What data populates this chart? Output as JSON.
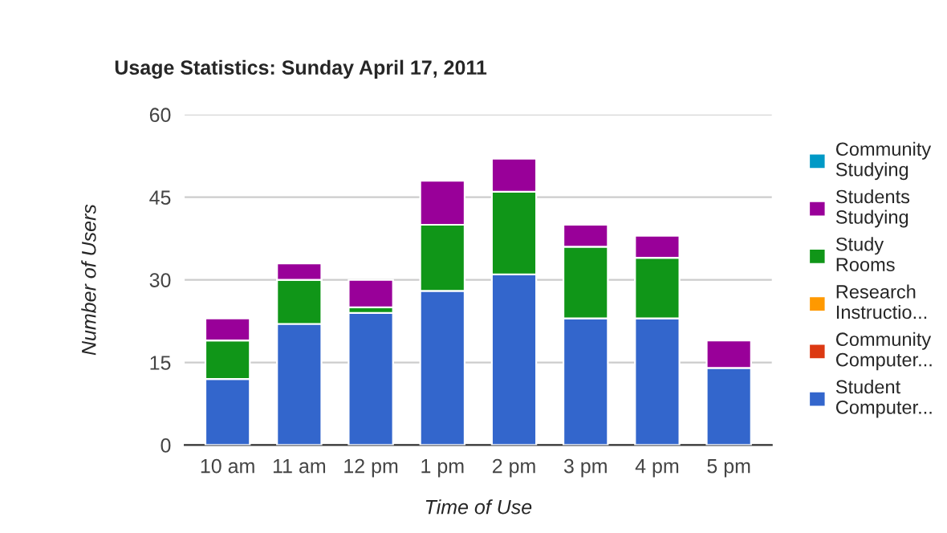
{
  "chart_data": {
    "type": "bar",
    "stacked": true,
    "title": "Usage Statistics: Sunday April 17, 2011",
    "xlabel": "Time of Use",
    "ylabel": "Number of Users",
    "categories": [
      "10 am",
      "11 am",
      "12 pm",
      "1 pm",
      "2 pm",
      "3 pm",
      "4 pm",
      "5 pm"
    ],
    "series": [
      {
        "name": "Student\nComputer...",
        "color": "#3366cc",
        "values": [
          12,
          22,
          24,
          28,
          31,
          23,
          23,
          14
        ]
      },
      {
        "name": "Community\nComputer...",
        "color": "#dc3912",
        "values": [
          0,
          0,
          0,
          0,
          0,
          0,
          0,
          0
        ]
      },
      {
        "name": "Research\nInstructio...",
        "color": "#ff9900",
        "values": [
          0,
          0,
          0,
          0,
          0,
          0,
          0,
          0
        ]
      },
      {
        "name": "Study\nRooms",
        "color": "#109618",
        "values": [
          7,
          8,
          1,
          12,
          15,
          13,
          11,
          0
        ]
      },
      {
        "name": "Students\nStudying",
        "color": "#990099",
        "values": [
          4,
          3,
          5,
          8,
          6,
          4,
          4,
          5
        ]
      },
      {
        "name": "Community\nStudying",
        "color": "#0099c6",
        "values": [
          0,
          0,
          0,
          0,
          0,
          0,
          0,
          0
        ]
      }
    ],
    "ylim": [
      0,
      60
    ],
    "yticks": [
      0,
      15,
      30,
      45,
      60
    ],
    "grid": "y",
    "legend": "right"
  }
}
